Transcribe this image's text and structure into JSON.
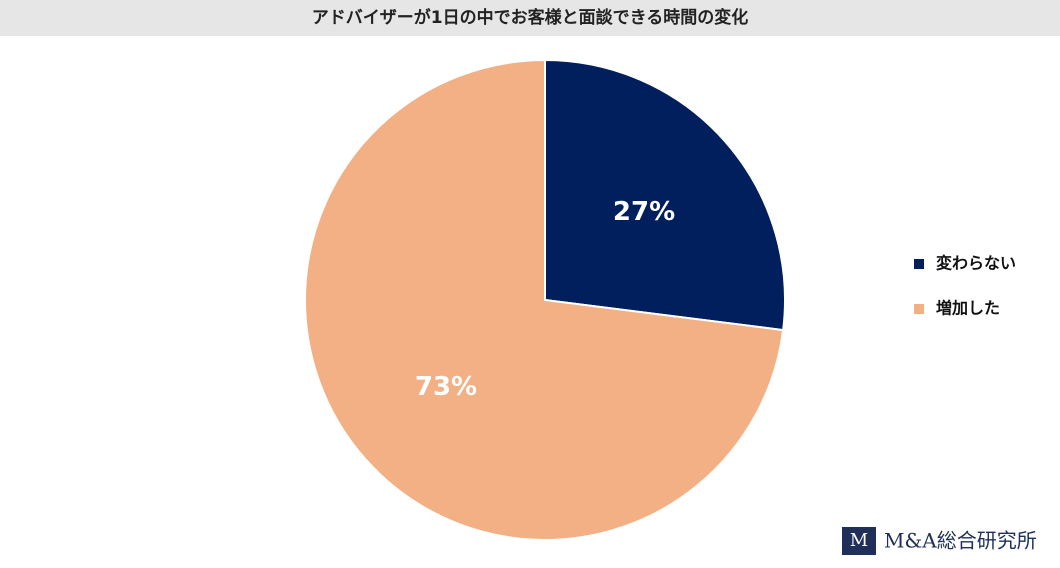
{
  "chart_data": {
    "type": "pie",
    "title": "アドバイザーが1日の中でお客様と面談できる時間の変化",
    "categories": [
      "変わらない",
      "増加した"
    ],
    "values": [
      27,
      73
    ],
    "value_labels": [
      "27%",
      "73%"
    ],
    "colors": [
      "#001f5c",
      "#f2b084"
    ],
    "legend": "right"
  },
  "logo": "M&A総合研究所"
}
